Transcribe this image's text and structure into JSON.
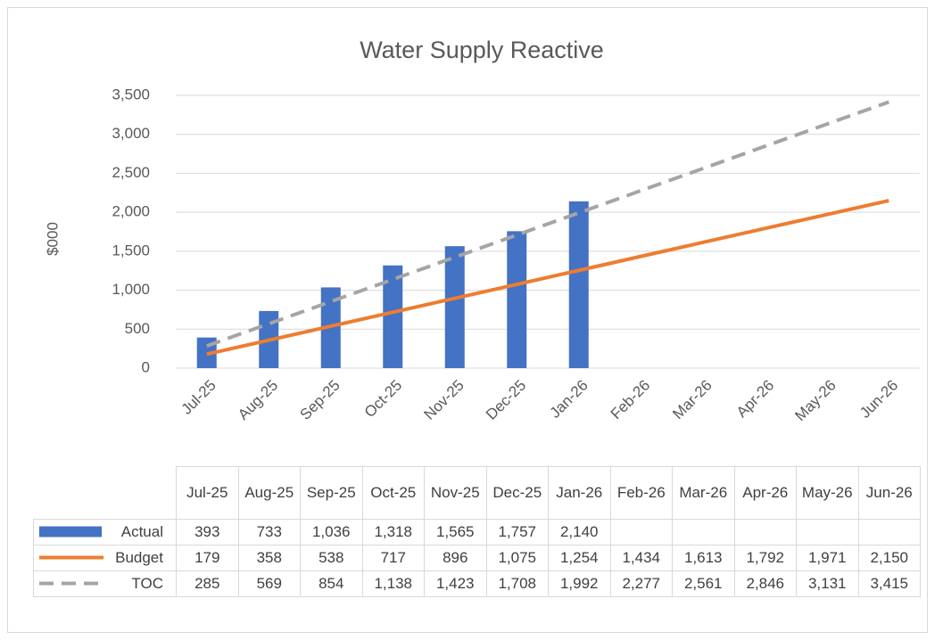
{
  "chart_data": {
    "type": "bar",
    "title": "Water Supply Reactive",
    "ylabel": "$000",
    "categories": [
      "Jul-25",
      "Aug-25",
      "Sep-25",
      "Oct-25",
      "Nov-25",
      "Dec-25",
      "Jan-26",
      "Feb-26",
      "Mar-26",
      "Apr-26",
      "May-26",
      "Jun-26"
    ],
    "series": [
      {
        "name": "Actual",
        "type": "bar",
        "color": "#4472c4",
        "values": [
          393,
          733,
          1036,
          1318,
          1565,
          1757,
          2140,
          null,
          null,
          null,
          null,
          null
        ],
        "value_labels": [
          "393",
          "733",
          "1,036",
          "1,318",
          "1,565",
          "1,757",
          "2,140",
          null,
          null,
          null,
          null,
          null
        ]
      },
      {
        "name": "Budget",
        "type": "line",
        "color": "#ed7d31",
        "line_style": "solid",
        "values": [
          179,
          358,
          538,
          717,
          896,
          1075,
          1254,
          1434,
          1613,
          1792,
          1971,
          2150
        ],
        "value_labels": [
          "179",
          "358",
          "538",
          "717",
          "896",
          "1,075",
          "1,254",
          "1,434",
          "1,613",
          "1,792",
          "1,971",
          "2,150"
        ]
      },
      {
        "name": "TOC",
        "type": "line",
        "color": "#a5a5a5",
        "line_style": "dashed",
        "values": [
          285,
          569,
          854,
          1138,
          1423,
          1708,
          1992,
          2277,
          2561,
          2846,
          3131,
          3415
        ],
        "value_labels": [
          "285",
          "569",
          "854",
          "1,138",
          "1,423",
          "1,708",
          "1,992",
          "2,277",
          "2,561",
          "2,846",
          "3,131",
          "3,415"
        ]
      }
    ],
    "ylim": [
      0,
      3500
    ],
    "yticks": [
      0,
      500,
      {
        "value": 1000,
        "label": "1,000"
      },
      {
        "value": 1500,
        "label": "1,500"
      },
      {
        "value": 2000,
        "label": "2,000"
      },
      {
        "value": 2500,
        "label": "2,500"
      },
      {
        "value": 3000,
        "label": "3,000"
      },
      {
        "value": 3500,
        "label": "3,500"
      }
    ],
    "grid": true,
    "data_table": true
  }
}
